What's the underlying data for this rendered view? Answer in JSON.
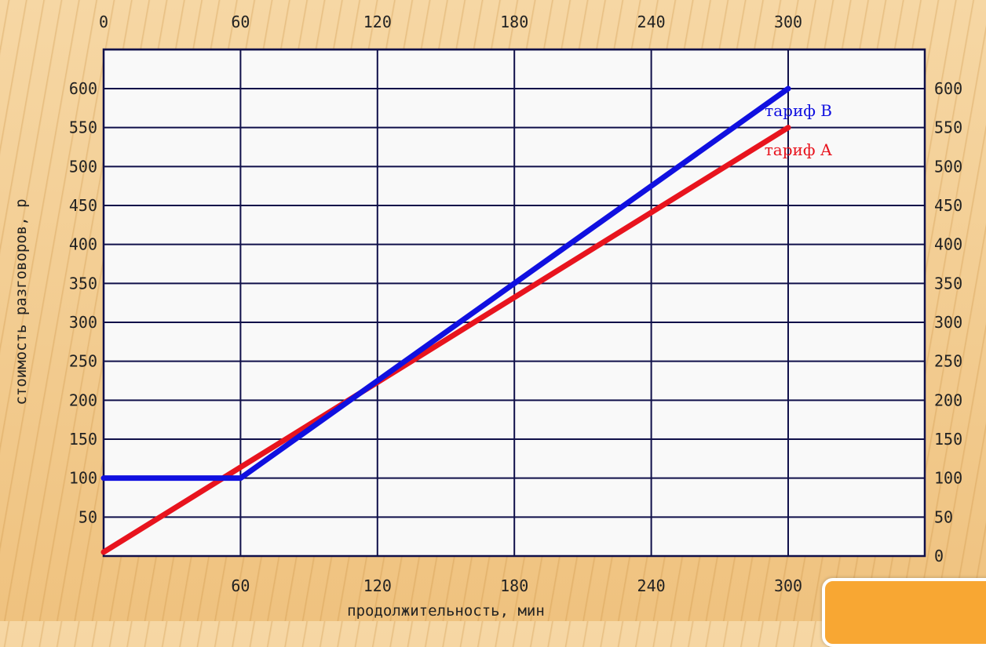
{
  "chart_data": {
    "type": "line",
    "xlabel": "продолжительность, мин",
    "ylabel": "стоимость разговоров, р",
    "xlim": [
      0,
      300
    ],
    "ylim": [
      0,
      650
    ],
    "x_ticks_top": [
      "0",
      "60",
      "120",
      "180",
      "240",
      "300"
    ],
    "x_ticks_bottom": [
      "60",
      "120",
      "180",
      "240",
      "300"
    ],
    "y_ticks_left": [
      "50",
      "100",
      "150",
      "200",
      "250",
      "300",
      "350",
      "400",
      "450",
      "500",
      "550",
      "600"
    ],
    "y_ticks_right": [
      "0",
      "50",
      "100",
      "150",
      "200",
      "250",
      "300",
      "350",
      "400",
      "450",
      "500",
      "550",
      "600"
    ],
    "grid": true,
    "series": [
      {
        "name": "тариф А",
        "color": "#e8141e",
        "x": [
          0,
          300
        ],
        "y": [
          5,
          550
        ]
      },
      {
        "name": "тариф В",
        "color": "#1010e0",
        "x": [
          0,
          60,
          300
        ],
        "y": [
          100,
          100,
          600
        ]
      }
    ]
  },
  "colors": {
    "background": "#f2c98e",
    "plot_bg": "#f9f9f9",
    "grid": "#10104a",
    "corner_box": "#f8a733"
  }
}
